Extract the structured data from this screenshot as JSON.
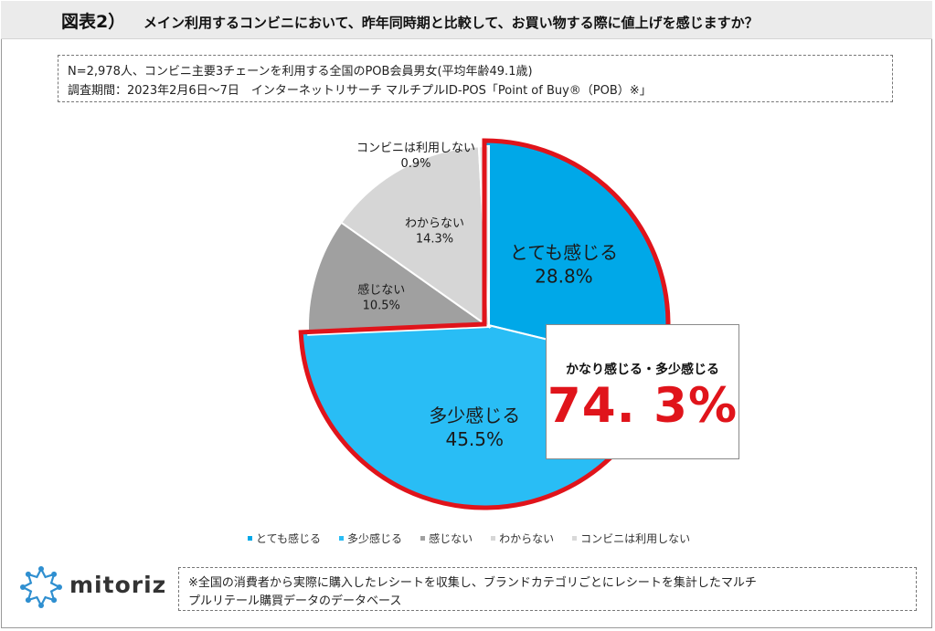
{
  "header": {
    "label": "図表2）",
    "title": "メイン利用するコンビニにおいて、昨年同時期と比較して、お買い物する際に値上げを感じますか？"
  },
  "info": {
    "line1": "N=2,978人、コンビニ主要3チェーンを利用する全国のPOB会員男女(平均年齢49.1歳)",
    "line2": "調査期間：2023年2月6日～7日　インターネットリサーチ マルチプルID-POS「Point of Buy®（POB）※」"
  },
  "chart_data": {
    "type": "pie",
    "title": "",
    "start_angle_deg": 0,
    "direction": "clockwise",
    "slices": [
      {
        "label": "とても感じる",
        "value": 28.8,
        "display": "28.8%",
        "color": "#00a8e8",
        "highlight": true
      },
      {
        "label": "多少感じる",
        "value": 45.5,
        "display": "45.5%",
        "color": "#29bdf5",
        "highlight": true
      },
      {
        "label": "感じない",
        "value": 10.5,
        "display": "10.5%",
        "color": "#a0a0a0",
        "highlight": false
      },
      {
        "label": "わからない",
        "value": 14.3,
        "display": "14.3%",
        "color": "#d6d6d6",
        "highlight": false
      },
      {
        "label": "コンビニは利用しない",
        "value": 0.9,
        "display": "0.9%",
        "color": "#ececec",
        "highlight": false
      }
    ],
    "highlight_outline_color": "#e0141b",
    "callout": {
      "label": "かなり感じる・多少感じる",
      "value": "74. 3%"
    },
    "legend_position": "bottom"
  },
  "logo": {
    "text": "mitoriz",
    "accent_color": "#2f8fd0"
  },
  "footnote": {
    "line1": "※全国の消費者から実際に購入したレシートを収集し、ブランドカテゴリごとにレシートを集計したマルチ",
    "line2": "プルリテール購買データのデータベース"
  }
}
